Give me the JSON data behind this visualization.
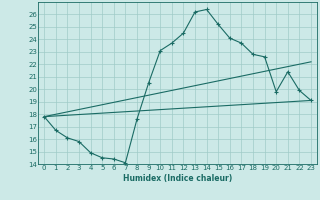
{
  "xlabel": "Humidex (Indice chaleur)",
  "xlim": [
    -0.5,
    23.5
  ],
  "ylim": [
    14,
    27
  ],
  "yticks": [
    14,
    15,
    16,
    17,
    18,
    19,
    20,
    21,
    22,
    23,
    24,
    25,
    26
  ],
  "xticks": [
    0,
    1,
    2,
    3,
    4,
    5,
    6,
    7,
    8,
    9,
    10,
    11,
    12,
    13,
    14,
    15,
    16,
    17,
    18,
    19,
    20,
    21,
    22,
    23
  ],
  "bg_color": "#cce9e7",
  "grid_color": "#a0cbc8",
  "line_color": "#1a6b64",
  "line1_x": [
    0,
    1,
    2,
    3,
    4,
    5,
    6,
    7,
    8,
    9,
    10,
    11,
    12,
    13,
    14,
    15,
    16,
    17,
    18,
    19,
    20,
    21,
    22,
    23
  ],
  "line1_y": [
    17.8,
    16.7,
    16.1,
    15.8,
    14.9,
    14.5,
    14.4,
    14.1,
    17.6,
    20.5,
    23.1,
    23.7,
    24.5,
    26.2,
    26.4,
    25.2,
    24.1,
    23.7,
    22.8,
    22.6,
    19.8,
    21.4,
    19.9,
    19.1
  ],
  "line2_x": [
    0,
    23
  ],
  "line2_y": [
    17.8,
    19.1
  ],
  "line3_x": [
    0,
    23
  ],
  "line3_y": [
    17.8,
    22.2
  ]
}
